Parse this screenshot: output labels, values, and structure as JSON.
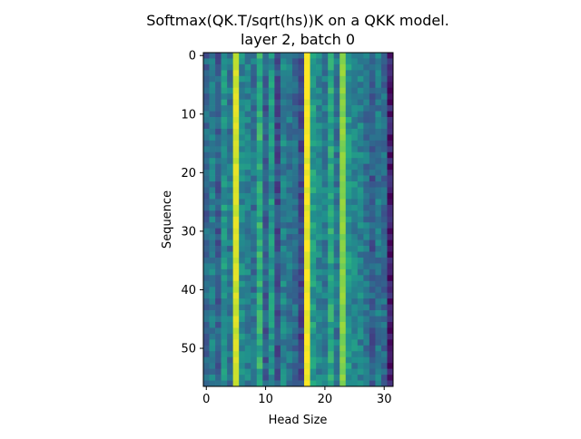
{
  "chart_data": {
    "type": "heatmap",
    "title": "Softmax(QK.T/sqrt(hs))K on a QKK model.",
    "subtitle": "layer 2, batch 0",
    "xlabel": "Head Size",
    "ylabel": "Sequence",
    "n_rows": 57,
    "n_cols": 32,
    "xlim": [
      -0.5,
      31.5
    ],
    "ylim": [
      56.5,
      -0.5
    ],
    "xticks": [
      0,
      10,
      20,
      30
    ],
    "yticks": [
      0,
      10,
      20,
      30,
      40,
      50
    ],
    "colormap": "viridis",
    "column_profile": [
      0.33,
      0.42,
      0.3,
      0.52,
      0.4,
      0.93,
      0.46,
      0.44,
      0.38,
      0.62,
      0.3,
      0.52,
      0.24,
      0.45,
      0.4,
      0.35,
      0.22,
      0.98,
      0.55,
      0.45,
      0.42,
      0.6,
      0.4,
      0.82,
      0.52,
      0.46,
      0.44,
      0.38,
      0.3,
      0.4,
      0.35,
      0.07
    ],
    "notes_on_values": "Normalized color level (0 = dark purple, 1 = yellow) per head-size column; rows vary mildly around this profile.",
    "grid": false,
    "legend": "none"
  }
}
